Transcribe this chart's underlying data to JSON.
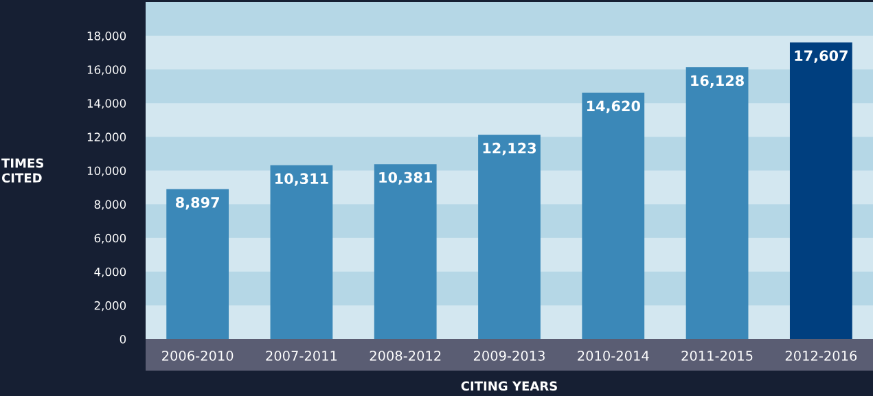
{
  "chart_data": {
    "type": "bar",
    "xlabel": "CITING YEARS",
    "ylabel": "TIMES\nCITED",
    "categories": [
      "2006-2010",
      "2007-2011",
      "2008-2012",
      "2009-2013",
      "2010-2014",
      "2011-2015",
      "2012-2016"
    ],
    "values": [
      8897,
      10311,
      10381,
      12123,
      14620,
      16128,
      17607
    ],
    "colors": [
      "#3b88b8",
      "#3b88b8",
      "#3b88b8",
      "#3b88b8",
      "#3b88b8",
      "#3b88b8",
      "#003f7f"
    ],
    "ylim": [
      0,
      20000
    ],
    "yticks": [
      {
        "value": 0,
        "label": "0"
      },
      {
        "value": 2000,
        "label": "2,000"
      },
      {
        "value": 4000,
        "label": "4,000"
      },
      {
        "value": 6000,
        "label": "6,000"
      },
      {
        "value": 8000,
        "label": "8,000"
      },
      {
        "value": 10000,
        "label": "10,000"
      },
      {
        "value": 12000,
        "label": "12,000"
      },
      {
        "value": 14000,
        "label": "14,000"
      },
      {
        "value": 16000,
        "label": "16,000"
      },
      {
        "value": 18000,
        "label": "18,000"
      }
    ],
    "value_labels": [
      "8,897",
      "10,311",
      "10,381",
      "12,123",
      "14,620",
      "16,128",
      "17,607"
    ],
    "legend": false
  }
}
